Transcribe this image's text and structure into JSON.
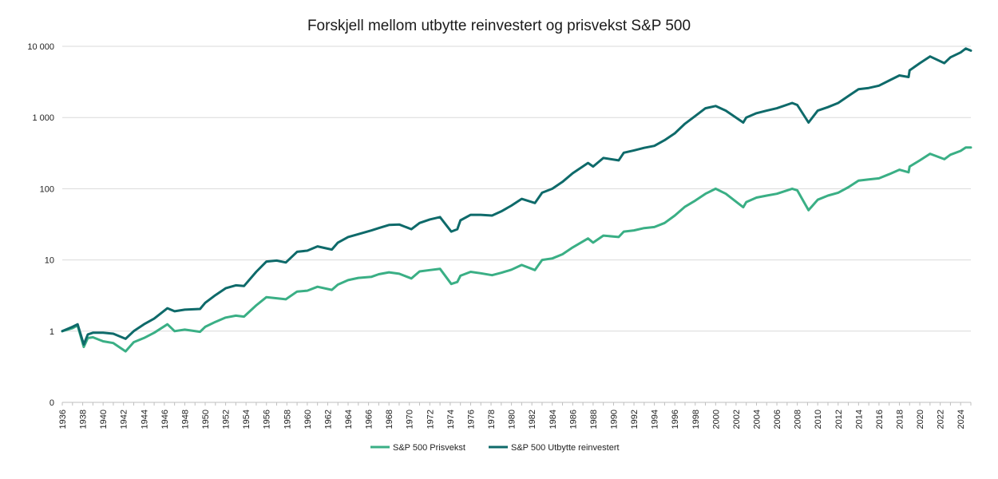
{
  "chart_data": {
    "type": "line",
    "title": "Forskjell mellom utbytte reinvestert og prisvekst S&P 500",
    "xlabel": "",
    "ylabel": "",
    "y_scale": "log",
    "ylim": [
      0.1,
      10000
    ],
    "xlim": [
      1936,
      2025
    ],
    "grid": true,
    "legend_position": "bottom",
    "y_tick_values": [
      0.1,
      1,
      10,
      100,
      1000,
      10000
    ],
    "y_tick_labels": [
      "0",
      "1",
      "10",
      "100",
      "1 000",
      "10 000"
    ],
    "x_tick_labels": [
      "1936",
      "1938",
      "1940",
      "1942",
      "1944",
      "1946",
      "1948",
      "1950",
      "1952",
      "1954",
      "1956",
      "1958",
      "1960",
      "1962",
      "1964",
      "1966",
      "1968",
      "1970",
      "1972",
      "1974",
      "1976",
      "1978",
      "1980",
      "1982",
      "1984",
      "1986",
      "1988",
      "1990",
      "1992",
      "1994",
      "1996",
      "1998",
      "2000",
      "2002",
      "2004",
      "2006",
      "2008",
      "2010",
      "2012",
      "2014",
      "2016",
      "2018",
      "2020",
      "2022",
      "2024"
    ],
    "series": [
      {
        "name": "S&P 500 Prisvekst",
        "color": "#3aaf85",
        "x": [
          1936,
          1937,
          1937.5,
          1938.1,
          1938.5,
          1939,
          1940,
          1941,
          1942.2,
          1943,
          1944,
          1945,
          1946.3,
          1947,
          1948,
          1949.5,
          1950,
          1951,
          1952,
          1953,
          1953.8,
          1955,
          1956,
          1957,
          1957.9,
          1959,
          1960,
          1961,
          1962.4,
          1963,
          1964,
          1965,
          1966.3,
          1967,
          1968,
          1969,
          1970.2,
          1971,
          1972,
          1973,
          1974.1,
          1974.7,
          1975,
          1976,
          1977,
          1978.1,
          1979,
          1980,
          1981,
          1982.3,
          1983,
          1984,
          1985,
          1986,
          1987.5,
          1988,
          1989,
          1990.5,
          1991,
          1992,
          1993,
          1994,
          1995,
          1996,
          1997,
          1998,
          1999,
          2000,
          2001,
          2002.7,
          2003,
          2004,
          2005,
          2006,
          2007.5,
          2008,
          2009.1,
          2010,
          2011,
          2012,
          2013,
          2014,
          2015,
          2016,
          2017,
          2018,
          2018.9,
          2019,
          2020,
          2021,
          2022.4,
          2023,
          2024,
          2024.5,
          2025
        ],
        "values": [
          1,
          1.1,
          1.2,
          0.6,
          0.8,
          0.82,
          0.72,
          0.68,
          0.52,
          0.7,
          0.8,
          0.95,
          1.25,
          1.0,
          1.05,
          0.98,
          1.15,
          1.35,
          1.55,
          1.65,
          1.6,
          2.3,
          3.0,
          2.9,
          2.8,
          3.6,
          3.7,
          4.2,
          3.8,
          4.5,
          5.2,
          5.6,
          5.8,
          6.3,
          6.7,
          6.4,
          5.5,
          6.9,
          7.2,
          7.5,
          4.6,
          4.9,
          6.0,
          6.8,
          6.5,
          6.1,
          6.6,
          7.3,
          8.5,
          7.2,
          10.0,
          10.5,
          12.0,
          15.0,
          20.0,
          17.5,
          22.0,
          21.0,
          25.0,
          26.0,
          28.0,
          29.0,
          33.0,
          42.0,
          56.0,
          68.0,
          85.0,
          100.0,
          85.0,
          55.0,
          65.0,
          75.0,
          80.0,
          85.0,
          100.0,
          95.0,
          50.0,
          70.0,
          80.0,
          88.0,
          105.0,
          130.0,
          135.0,
          140.0,
          160.0,
          185.0,
          170.0,
          205.0,
          250.0,
          310.0,
          260.0,
          300.0,
          340.0,
          380.0,
          380.0
        ]
      },
      {
        "name": "S&P 500 Utbytte reinvestert",
        "color": "#0e6a6a",
        "x": [
          1936,
          1937,
          1937.5,
          1938.1,
          1938.5,
          1939,
          1940,
          1941,
          1942.2,
          1943,
          1944,
          1945,
          1946.3,
          1947,
          1948,
          1949.5,
          1950,
          1951,
          1952,
          1953,
          1953.8,
          1955,
          1956,
          1957,
          1957.9,
          1959,
          1960,
          1961,
          1962.4,
          1963,
          1964,
          1965,
          1966.3,
          1967,
          1968,
          1969,
          1970.2,
          1971,
          1972,
          1973,
          1974.1,
          1974.7,
          1975,
          1976,
          1977,
          1978.1,
          1979,
          1980,
          1981,
          1982.3,
          1983,
          1984,
          1985,
          1986,
          1987.5,
          1988,
          1989,
          1990.5,
          1991,
          1992,
          1993,
          1994,
          1995,
          1996,
          1997,
          1998,
          1999,
          2000,
          2001,
          2002.7,
          2003,
          2004,
          2005,
          2006,
          2007.5,
          2008,
          2009.1,
          2010,
          2011,
          2012,
          2013,
          2014,
          2015,
          2016,
          2017,
          2018,
          2018.9,
          2019,
          2020,
          2021,
          2022.4,
          2023,
          2024,
          2024.5,
          2025
        ],
        "values": [
          1,
          1.15,
          1.25,
          0.65,
          0.9,
          0.95,
          0.95,
          0.92,
          0.78,
          1.0,
          1.25,
          1.5,
          2.1,
          1.9,
          2.0,
          2.05,
          2.5,
          3.2,
          4.0,
          4.4,
          4.3,
          6.8,
          9.5,
          9.8,
          9.2,
          13.0,
          13.5,
          15.5,
          14.0,
          17.5,
          21.0,
          23.0,
          26.0,
          28.0,
          31.0,
          31.5,
          27.0,
          33.0,
          37.0,
          40.0,
          25.0,
          27.0,
          36.0,
          43.0,
          43.0,
          42.0,
          48.0,
          58.0,
          72.0,
          63.0,
          88.0,
          100.0,
          125.0,
          165.0,
          230.0,
          205.0,
          270.0,
          250.0,
          320.0,
          345.0,
          375.0,
          400.0,
          480.0,
          600.0,
          820.0,
          1050.0,
          1350.0,
          1450.0,
          1250.0,
          850.0,
          1000.0,
          1150.0,
          1250.0,
          1350.0,
          1600.0,
          1500.0,
          850.0,
          1250.0,
          1400.0,
          1600.0,
          2000.0,
          2500.0,
          2600.0,
          2800.0,
          3300.0,
          3900.0,
          3700.0,
          4600.0,
          5800.0,
          7200.0,
          5800.0,
          7000.0,
          8200.0,
          9300.0,
          8700.0
        ]
      }
    ]
  }
}
